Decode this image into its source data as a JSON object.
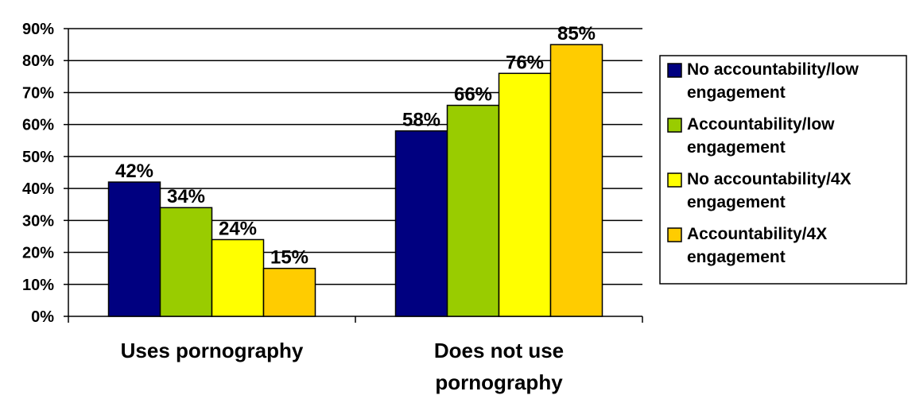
{
  "chart_data": {
    "type": "bar",
    "categories": [
      "Uses pornography",
      "Does not use pornography"
    ],
    "series": [
      {
        "name": "No accountability/low engagement",
        "values": [
          42,
          58
        ],
        "labels": [
          "42%",
          "58%"
        ],
        "color": "#000080"
      },
      {
        "name": "Accountability/low engagement",
        "values": [
          34,
          66
        ],
        "labels": [
          "34%",
          "66%"
        ],
        "color": "#99CC00"
      },
      {
        "name": "No accountability/4X engagement",
        "values": [
          24,
          76
        ],
        "labels": [
          "24%",
          "76%"
        ],
        "color": "#FFFF00"
      },
      {
        "name": "Accountability/4X engagement",
        "values": [
          15,
          85
        ],
        "labels": [
          "15%",
          "85%"
        ],
        "color": "#FFCC00"
      }
    ],
    "yticks": [
      "0%",
      "10%",
      "20%",
      "30%",
      "40%",
      "50%",
      "60%",
      "70%",
      "80%",
      "90%"
    ],
    "ylim": [
      0,
      90
    ],
    "grid": true,
    "legend": "right"
  }
}
